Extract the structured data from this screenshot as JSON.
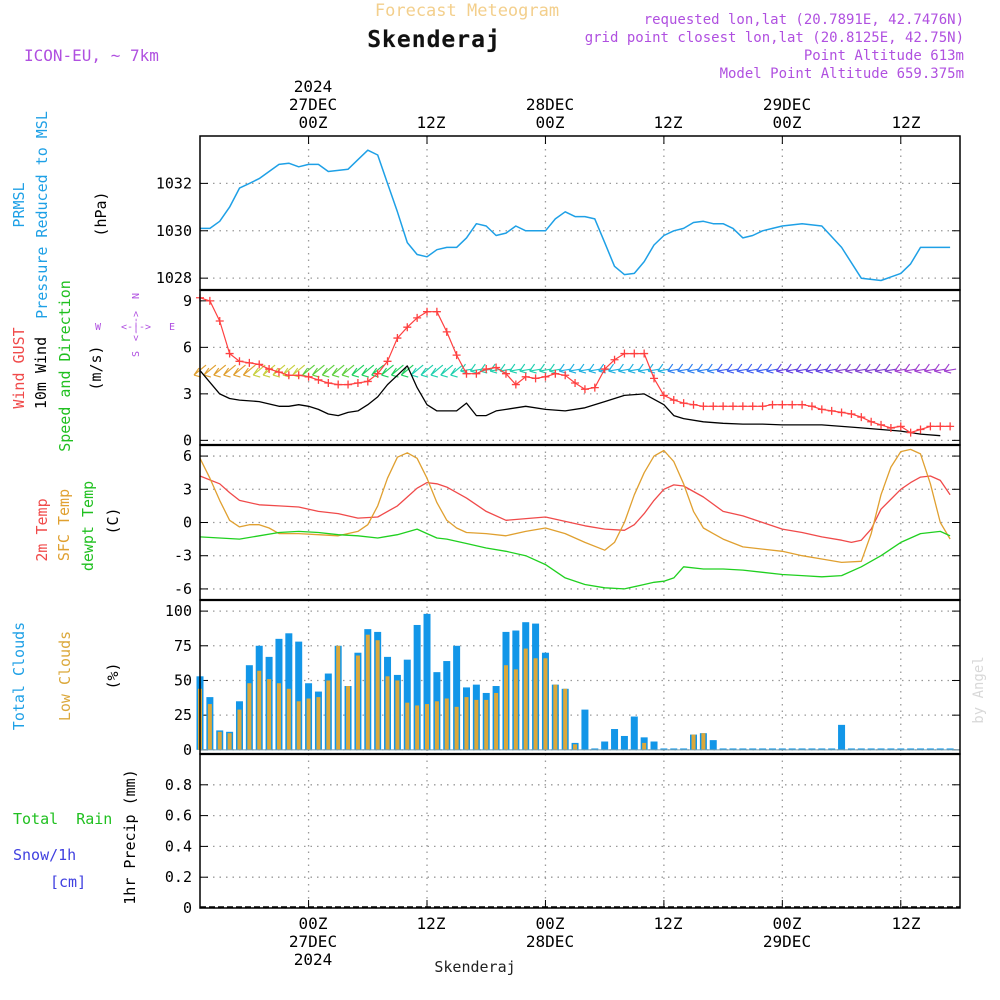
{
  "header": {
    "title": "Forecast Meteogram",
    "station": "Skenderaj",
    "model": "ICON-EU, ~ 7km",
    "info": [
      "requested lon,lat (20.7891E, 42.7476N)",
      "grid point closest lon,lat (20.8125E, 42.75N)",
      "Point Altitude 613m",
      "Model Point Altitude 659.375m"
    ]
  },
  "footer": {
    "station": "Skenderaj",
    "watermark": "by Angel"
  },
  "time_axis": {
    "top_year": "2024",
    "top_days": [
      {
        "day": "27DEC",
        "hour": "00Z"
      },
      {
        "day": "28DEC",
        "hour": "00Z"
      },
      {
        "day": "29DEC",
        "hour": "00Z"
      }
    ],
    "bottom_year": "2024",
    "bottom_days": [
      "27DEC",
      "28DEC",
      "29DEC"
    ],
    "tick_labels": [
      {
        "label": "00Z",
        "hour": 0
      },
      {
        "label": "12Z",
        "hour": 12
      },
      {
        "label": "00Z",
        "hour": 24
      },
      {
        "label": "12Z",
        "hour": 36
      },
      {
        "label": "00Z",
        "hour": 48
      },
      {
        "label": "12Z",
        "hour": 60
      }
    ],
    "start_hour": -11,
    "end_hour": 66
  },
  "panel_labels": {
    "pressure": [
      "PRMSL",
      "Pressure Reduced to MSL",
      "(hPa)"
    ],
    "wind": [
      "Wind GUST",
      "10m Wind",
      "Speed and Direction",
      "(m/s)"
    ],
    "compass": {
      "n": "N",
      "s": "S",
      "w": "W",
      "e": "E",
      "ns_arrows": "<--->",
      "we_arrows": "<-|->"
    },
    "temp": [
      "2m Temp",
      "SFC Temp",
      "dewpt Temp",
      "(C)"
    ],
    "clouds": [
      "Total Clouds",
      "Low Clouds",
      "(%)"
    ],
    "precip": [
      "Total  Rain",
      "Snow/1h",
      "[cm]",
      "1hr Precip (mm)"
    ]
  },
  "colors": {
    "pressure": "#1ea0e6",
    "gust": "#ff4040",
    "wind": "#000000",
    "t2m": "#f04a4a",
    "sfc": "#e0a030",
    "dewpt": "#20d020",
    "total_cloud": "#1296e8",
    "low_cloud": "#dba83b",
    "label_purple": "#b050e0",
    "title_orange": "#f3cf8c"
  },
  "chart_data": [
    {
      "type": "line",
      "name": "pressure",
      "ylim": [
        1027.5,
        1034
      ],
      "yticks": [
        1028,
        1030,
        1032
      ],
      "grid": true,
      "x": [
        -11,
        -10,
        -9,
        -8,
        -7,
        -6,
        -5,
        -4,
        -3,
        -2,
        -1,
        0,
        1,
        2,
        3,
        4,
        5,
        6,
        7,
        8,
        9,
        10,
        11,
        12,
        13,
        14,
        15,
        16,
        17,
        18,
        19,
        20,
        21,
        22,
        23,
        24,
        25,
        26,
        27,
        28,
        29,
        30,
        31,
        32,
        33,
        34,
        35,
        36,
        37,
        38,
        39,
        40,
        41,
        42,
        43,
        44,
        45,
        46,
        47,
        48,
        50,
        52,
        54,
        56,
        58,
        60,
        61,
        62,
        63,
        64,
        65
      ],
      "y": [
        1030.1,
        1030.1,
        1030.4,
        1031.0,
        1031.8,
        1032.0,
        1032.2,
        1032.5,
        1032.8,
        1032.85,
        1032.7,
        1032.8,
        1032.8,
        1032.5,
        1032.55,
        1032.6,
        1033.0,
        1033.4,
        1033.2,
        1032.0,
        1030.8,
        1029.5,
        1029.0,
        1028.9,
        1029.2,
        1029.3,
        1029.3,
        1029.7,
        1030.3,
        1030.2,
        1029.8,
        1029.9,
        1030.2,
        1030.0,
        1030.0,
        1030.0,
        1030.5,
        1030.8,
        1030.6,
        1030.6,
        1030.5,
        1029.5,
        1028.5,
        1028.15,
        1028.2,
        1028.7,
        1029.4,
        1029.8,
        1030.0,
        1030.1,
        1030.35,
        1030.4,
        1030.3,
        1030.3,
        1030.1,
        1029.7,
        1029.8,
        1030.0,
        1030.1,
        1030.2,
        1030.3,
        1030.2,
        1029.3,
        1028.0,
        1027.9,
        1028.2,
        1028.6,
        1029.3,
        1029.3,
        1029.3,
        1029.3
      ]
    },
    {
      "type": "line",
      "name": "wind",
      "ylim": [
        -0.3,
        9.7
      ],
      "yticks": [
        0,
        3,
        6,
        9
      ],
      "grid": true,
      "series": [
        {
          "name": "Wind GUST",
          "marker": "+",
          "x": [
            -11,
            -10,
            -9,
            -8,
            -7,
            -6,
            -5,
            -4,
            -3,
            -2,
            -1,
            0,
            1,
            2,
            3,
            4,
            5,
            6,
            7,
            8,
            9,
            10,
            11,
            12,
            13,
            14,
            15,
            16,
            17,
            18,
            19,
            20,
            21,
            22,
            23,
            24,
            25,
            26,
            27,
            28,
            29,
            30,
            31,
            32,
            33,
            34,
            35,
            36,
            37,
            38,
            39,
            40,
            41,
            42,
            43,
            44,
            45,
            46,
            47,
            48,
            49,
            50,
            51,
            52,
            53,
            54,
            55,
            56,
            57,
            58,
            59,
            60,
            61,
            62,
            63,
            64,
            65
          ],
          "y": [
            9.2,
            9.0,
            7.7,
            5.6,
            5.1,
            5.0,
            4.9,
            4.6,
            4.4,
            4.2,
            4.2,
            4.1,
            3.9,
            3.7,
            3.6,
            3.6,
            3.7,
            3.8,
            4.3,
            5.1,
            6.6,
            7.3,
            7.9,
            8.3,
            8.3,
            7.0,
            5.5,
            4.3,
            4.3,
            4.6,
            4.7,
            4.3,
            3.6,
            4.1,
            4.0,
            4.1,
            4.3,
            4.2,
            3.7,
            3.3,
            3.4,
            4.6,
            5.2,
            5.6,
            5.6,
            5.6,
            4.0,
            2.9,
            2.6,
            2.4,
            2.3,
            2.2,
            2.2,
            2.2,
            2.2,
            2.2,
            2.2,
            2.2,
            2.3,
            2.3,
            2.3,
            2.3,
            2.2,
            2.0,
            1.9,
            1.8,
            1.7,
            1.5,
            1.2,
            1.0,
            0.8,
            0.9,
            0.5,
            0.7,
            0.9,
            0.9,
            0.9
          ]
        },
        {
          "name": "10m Wind",
          "x": [
            -11,
            -9,
            -8,
            -7,
            -5,
            -3,
            -2,
            -1,
            0,
            1,
            2,
            3,
            4,
            5,
            6,
            7,
            8,
            9,
            10,
            11,
            12,
            13,
            14,
            15,
            16,
            17,
            18,
            19,
            20,
            22,
            24,
            26,
            28,
            30,
            32,
            34,
            36,
            37,
            38,
            40,
            42,
            44,
            46,
            48,
            50,
            52,
            54,
            56,
            58,
            60,
            62,
            64
          ],
          "y": [
            4.5,
            3.0,
            2.7,
            2.6,
            2.5,
            2.2,
            2.2,
            2.3,
            2.2,
            2.0,
            1.7,
            1.6,
            1.8,
            1.9,
            2.3,
            2.8,
            3.6,
            4.2,
            4.8,
            3.4,
            2.3,
            1.9,
            1.9,
            1.9,
            2.4,
            1.6,
            1.6,
            1.9,
            2.0,
            2.2,
            2.0,
            1.9,
            2.1,
            2.5,
            2.9,
            3.0,
            2.3,
            1.6,
            1.4,
            1.2,
            1.1,
            1.05,
            1.05,
            1.0,
            1.0,
            1.0,
            0.9,
            0.8,
            0.7,
            0.6,
            0.4,
            0.3
          ]
        }
      ],
      "wind_barbs": {
        "x": [
          -11,
          -10,
          -9,
          -8,
          -7,
          -6,
          -5,
          -4,
          -3,
          -2,
          -1,
          0,
          1,
          2,
          3,
          4,
          5,
          6,
          7,
          8,
          9,
          10,
          11,
          12,
          13,
          14,
          15,
          16,
          17,
          18,
          19,
          20,
          21,
          22,
          23,
          24,
          25,
          26,
          27,
          28,
          29,
          30,
          31,
          32,
          33,
          34,
          35,
          36,
          37,
          38,
          39,
          40,
          41,
          42,
          43,
          44,
          45,
          46,
          47,
          48,
          49,
          50,
          51,
          52,
          53,
          54,
          55,
          56,
          57,
          58,
          59,
          60,
          61,
          62,
          63,
          64,
          65
        ],
        "y_level": 4.6
      }
    },
    {
      "type": "line",
      "name": "temperature",
      "ylim": [
        -7,
        7
      ],
      "yticks": [
        -6,
        -3,
        0,
        3,
        6
      ],
      "grid": true,
      "series": [
        {
          "name": "2m Temp",
          "x": [
            -11,
            -9,
            -8,
            -7,
            -5,
            -3,
            -1,
            1,
            3,
            5,
            7,
            9,
            10,
            11,
            12,
            13,
            14,
            16,
            18,
            20,
            24,
            28,
            30,
            32,
            33,
            34,
            35,
            36,
            37,
            38,
            40,
            42,
            44,
            46,
            48,
            50,
            52,
            54,
            55,
            56,
            57,
            58,
            60,
            61,
            62,
            63,
            64,
            65
          ],
          "y": [
            4.2,
            3.5,
            2.7,
            2.0,
            1.6,
            1.5,
            1.4,
            1.0,
            0.8,
            0.4,
            0.5,
            1.5,
            2.3,
            3.1,
            3.6,
            3.5,
            3.2,
            2.2,
            1.0,
            0.2,
            0.5,
            -0.3,
            -0.6,
            -0.7,
            -0.2,
            0.8,
            2.0,
            3.0,
            3.4,
            3.3,
            2.3,
            1.0,
            0.6,
            0.0,
            -0.6,
            -0.9,
            -1.3,
            -1.6,
            -1.8,
            -1.6,
            -0.6,
            1.2,
            3.0,
            3.6,
            4.1,
            4.2,
            3.8,
            2.5
          ]
        },
        {
          "name": "SFC Temp",
          "x": [
            -11,
            -10,
            -9,
            -8,
            -7,
            -6,
            -5,
            -4,
            -3,
            -1,
            1,
            3,
            5,
            6,
            7,
            8,
            9,
            10,
            11,
            12,
            13,
            14,
            15,
            16,
            18,
            20,
            22,
            24,
            26,
            28,
            30,
            31,
            32,
            33,
            34,
            35,
            36,
            37,
            38,
            39,
            40,
            41,
            42,
            44,
            46,
            48,
            50,
            52,
            54,
            56,
            57,
            58,
            59,
            60,
            61,
            62,
            63,
            64,
            65
          ],
          "y": [
            5.8,
            4.0,
            2.0,
            0.2,
            -0.4,
            -0.2,
            -0.2,
            -0.5,
            -1.0,
            -1.0,
            -1.1,
            -1.2,
            -0.8,
            -0.2,
            1.5,
            4.0,
            5.9,
            6.3,
            5.8,
            4.0,
            1.8,
            0.2,
            -0.5,
            -0.9,
            -1.0,
            -1.2,
            -0.8,
            -0.5,
            -1.0,
            -1.8,
            -2.5,
            -1.8,
            0.0,
            2.5,
            4.5,
            6.0,
            6.5,
            5.5,
            3.5,
            1.0,
            -0.5,
            -1.0,
            -1.5,
            -2.2,
            -2.4,
            -2.6,
            -3.0,
            -3.3,
            -3.6,
            -3.5,
            -1.0,
            2.5,
            5.0,
            6.4,
            6.6,
            6.2,
            3.5,
            0.0,
            -1.5
          ]
        },
        {
          "name": "dewpt Temp",
          "x": [
            -11,
            -9,
            -7,
            -5,
            -3,
            -1,
            1,
            3,
            5,
            7,
            9,
            11,
            12,
            13,
            14,
            16,
            18,
            20,
            22,
            24,
            26,
            28,
            30,
            32,
            34,
            35,
            36,
            37,
            38,
            40,
            42,
            44,
            46,
            48,
            50,
            52,
            54,
            56,
            58,
            60,
            62,
            64,
            65
          ],
          "y": [
            -1.3,
            -1.4,
            -1.5,
            -1.2,
            -0.9,
            -0.8,
            -0.9,
            -1.1,
            -1.2,
            -1.4,
            -1.1,
            -0.6,
            -1.0,
            -1.4,
            -1.5,
            -1.9,
            -2.3,
            -2.6,
            -3.0,
            -3.8,
            -5.0,
            -5.6,
            -5.9,
            -6.0,
            -5.6,
            -5.4,
            -5.3,
            -5.0,
            -4.0,
            -4.2,
            -4.2,
            -4.3,
            -4.5,
            -4.7,
            -4.8,
            -4.9,
            -4.8,
            -4.0,
            -3.0,
            -1.8,
            -1.0,
            -0.8,
            -1.2
          ]
        }
      ]
    },
    {
      "type": "bar",
      "name": "clouds",
      "ylim": [
        -3,
        108
      ],
      "yticks": [
        0,
        25,
        50,
        75,
        100
      ],
      "grid": true,
      "x": [
        -11,
        -10,
        -9,
        -8,
        -7,
        -6,
        -5,
        -4,
        -3,
        -2,
        -1,
        0,
        1,
        2,
        3,
        4,
        5,
        6,
        7,
        8,
        9,
        10,
        11,
        12,
        13,
        14,
        15,
        16,
        17,
        18,
        19,
        20,
        21,
        22,
        23,
        24,
        25,
        26,
        27,
        28,
        29,
        30,
        31,
        32,
        33,
        34,
        35,
        36,
        37,
        38,
        39,
        40,
        41,
        42,
        43,
        44,
        45,
        46,
        47,
        48,
        49,
        50,
        51,
        52,
        53,
        54,
        55,
        56,
        57,
        58,
        59,
        60,
        61,
        62,
        63,
        64,
        65
      ],
      "series": [
        {
          "name": "Total Clouds",
          "values": [
            53,
            38,
            14,
            13,
            35,
            61,
            75,
            67,
            80,
            84,
            78,
            48,
            42,
            55,
            75,
            46,
            70,
            87,
            85,
            67,
            54,
            65,
            90,
            98,
            56,
            64,
            75,
            45,
            47,
            41,
            46,
            85,
            86,
            92,
            91,
            70,
            47,
            44,
            5,
            29,
            1,
            6,
            15,
            10,
            24,
            9,
            6,
            1,
            1,
            1,
            11,
            12,
            7,
            1,
            1,
            1,
            1,
            1,
            1,
            1,
            1,
            1,
            1,
            1,
            1,
            18,
            1,
            1,
            1,
            1,
            1,
            1,
            1,
            1,
            1,
            1,
            1
          ]
        },
        {
          "name": "Low Clouds",
          "values": [
            44,
            33,
            13,
            12,
            29,
            48,
            57,
            51,
            48,
            44,
            35,
            37,
            38,
            50,
            75,
            46,
            68,
            83,
            79,
            53,
            50,
            34,
            32,
            33,
            35,
            37,
            31,
            38,
            36,
            36,
            41,
            61,
            58,
            73,
            66,
            66,
            47,
            44,
            4,
            0,
            0,
            0,
            0,
            0,
            0,
            5,
            0,
            0,
            0,
            0,
            11,
            12,
            0,
            0,
            0,
            0,
            0,
            0,
            0,
            0,
            0,
            0,
            0,
            0,
            0,
            0,
            0,
            0,
            0,
            0,
            0,
            0,
            0,
            0,
            0,
            0,
            0
          ]
        }
      ]
    },
    {
      "type": "bar",
      "name": "precip",
      "ylim": [
        0,
        1.0
      ],
      "yticks": [
        0,
        0.2,
        0.4,
        0.6,
        0.8
      ],
      "grid": true,
      "series": [
        {
          "name": "Total Rain",
          "values": []
        },
        {
          "name": "Snow/1h",
          "values": []
        }
      ]
    }
  ]
}
